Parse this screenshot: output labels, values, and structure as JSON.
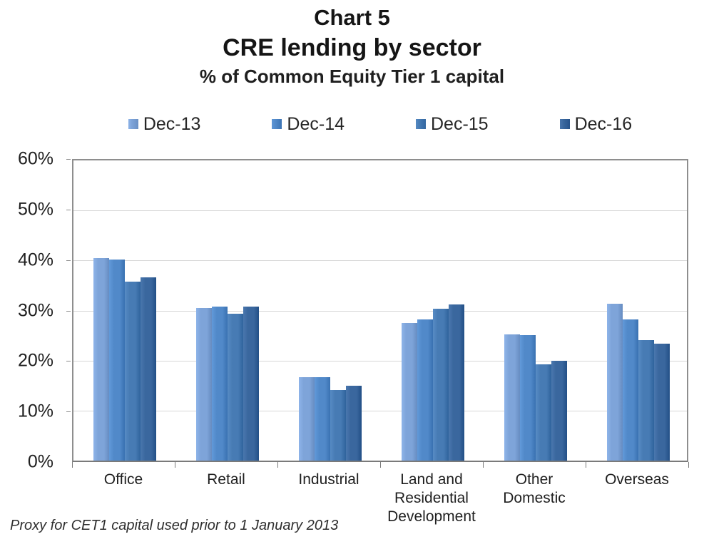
{
  "title": "Chart 5",
  "subtitle": "CRE lending by sector",
  "units_label": "% of Common Equity Tier 1 capital",
  "footnote": "Proxy for CET1 capital used prior to 1 January 2013",
  "colors": {
    "gridline": "#d6d6d6",
    "axis_border": "#8e8e8e",
    "text": "#1f1f1f"
  },
  "chart_data": {
    "type": "bar",
    "title": "Chart 5",
    "subtitle": "CRE lending by sector",
    "ylabel": "% of Common Equity Tier 1 capital",
    "xlabel": "",
    "grid": true,
    "legend_position": "top",
    "ylim": [
      0,
      60
    ],
    "yticks": [
      {
        "value": 0,
        "label": "0%"
      },
      {
        "value": 10,
        "label": "10%"
      },
      {
        "value": 20,
        "label": "20%"
      },
      {
        "value": 30,
        "label": "30%"
      },
      {
        "value": 40,
        "label": "40%"
      },
      {
        "value": 50,
        "label": "50%"
      },
      {
        "value": 60,
        "label": "60%"
      }
    ],
    "categories": [
      "Office",
      "Retail",
      "Industrial",
      "Land and Residential Development",
      "Other Domestic",
      "Overseas"
    ],
    "series": [
      {
        "name": "Dec-13",
        "color": "#7ea4d9",
        "values": [
          40.5,
          30.5,
          16.7,
          27.5,
          25.2,
          31.4
        ]
      },
      {
        "name": "Dec-14",
        "color": "#5189c9",
        "values": [
          40.2,
          30.8,
          16.7,
          28.2,
          25.1,
          28.2
        ]
      },
      {
        "name": "Dec-15",
        "color": "#477bb4",
        "values": [
          35.8,
          29.3,
          14.1,
          30.4,
          19.3,
          24.1
        ]
      },
      {
        "name": "Dec-16",
        "color": "#3a679e",
        "values": [
          36.7,
          30.8,
          14.9,
          31.2,
          20.0,
          23.4
        ]
      }
    ]
  }
}
